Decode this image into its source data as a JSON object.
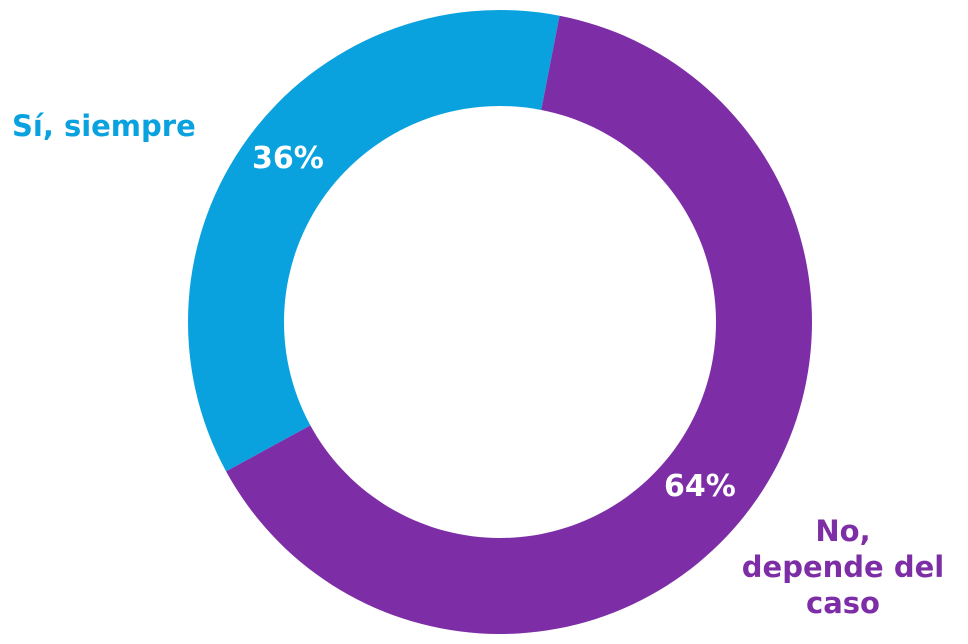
{
  "chart_data": {
    "type": "pie",
    "donut": true,
    "categories": [
      "Sí, siempre",
      "No, depende del caso"
    ],
    "values": [
      36,
      64
    ],
    "value_labels": [
      "36%",
      "64%"
    ],
    "colors": [
      "#0AA2DE",
      "#7D2EA6"
    ],
    "start_angle_deg": 11,
    "direction": "counterclockwise",
    "legend": "none (labels placed next to slices)",
    "category_label_lines": [
      [
        "Sí, siempre"
      ],
      [
        "No,",
        "depende del",
        "caso"
      ]
    ]
  }
}
